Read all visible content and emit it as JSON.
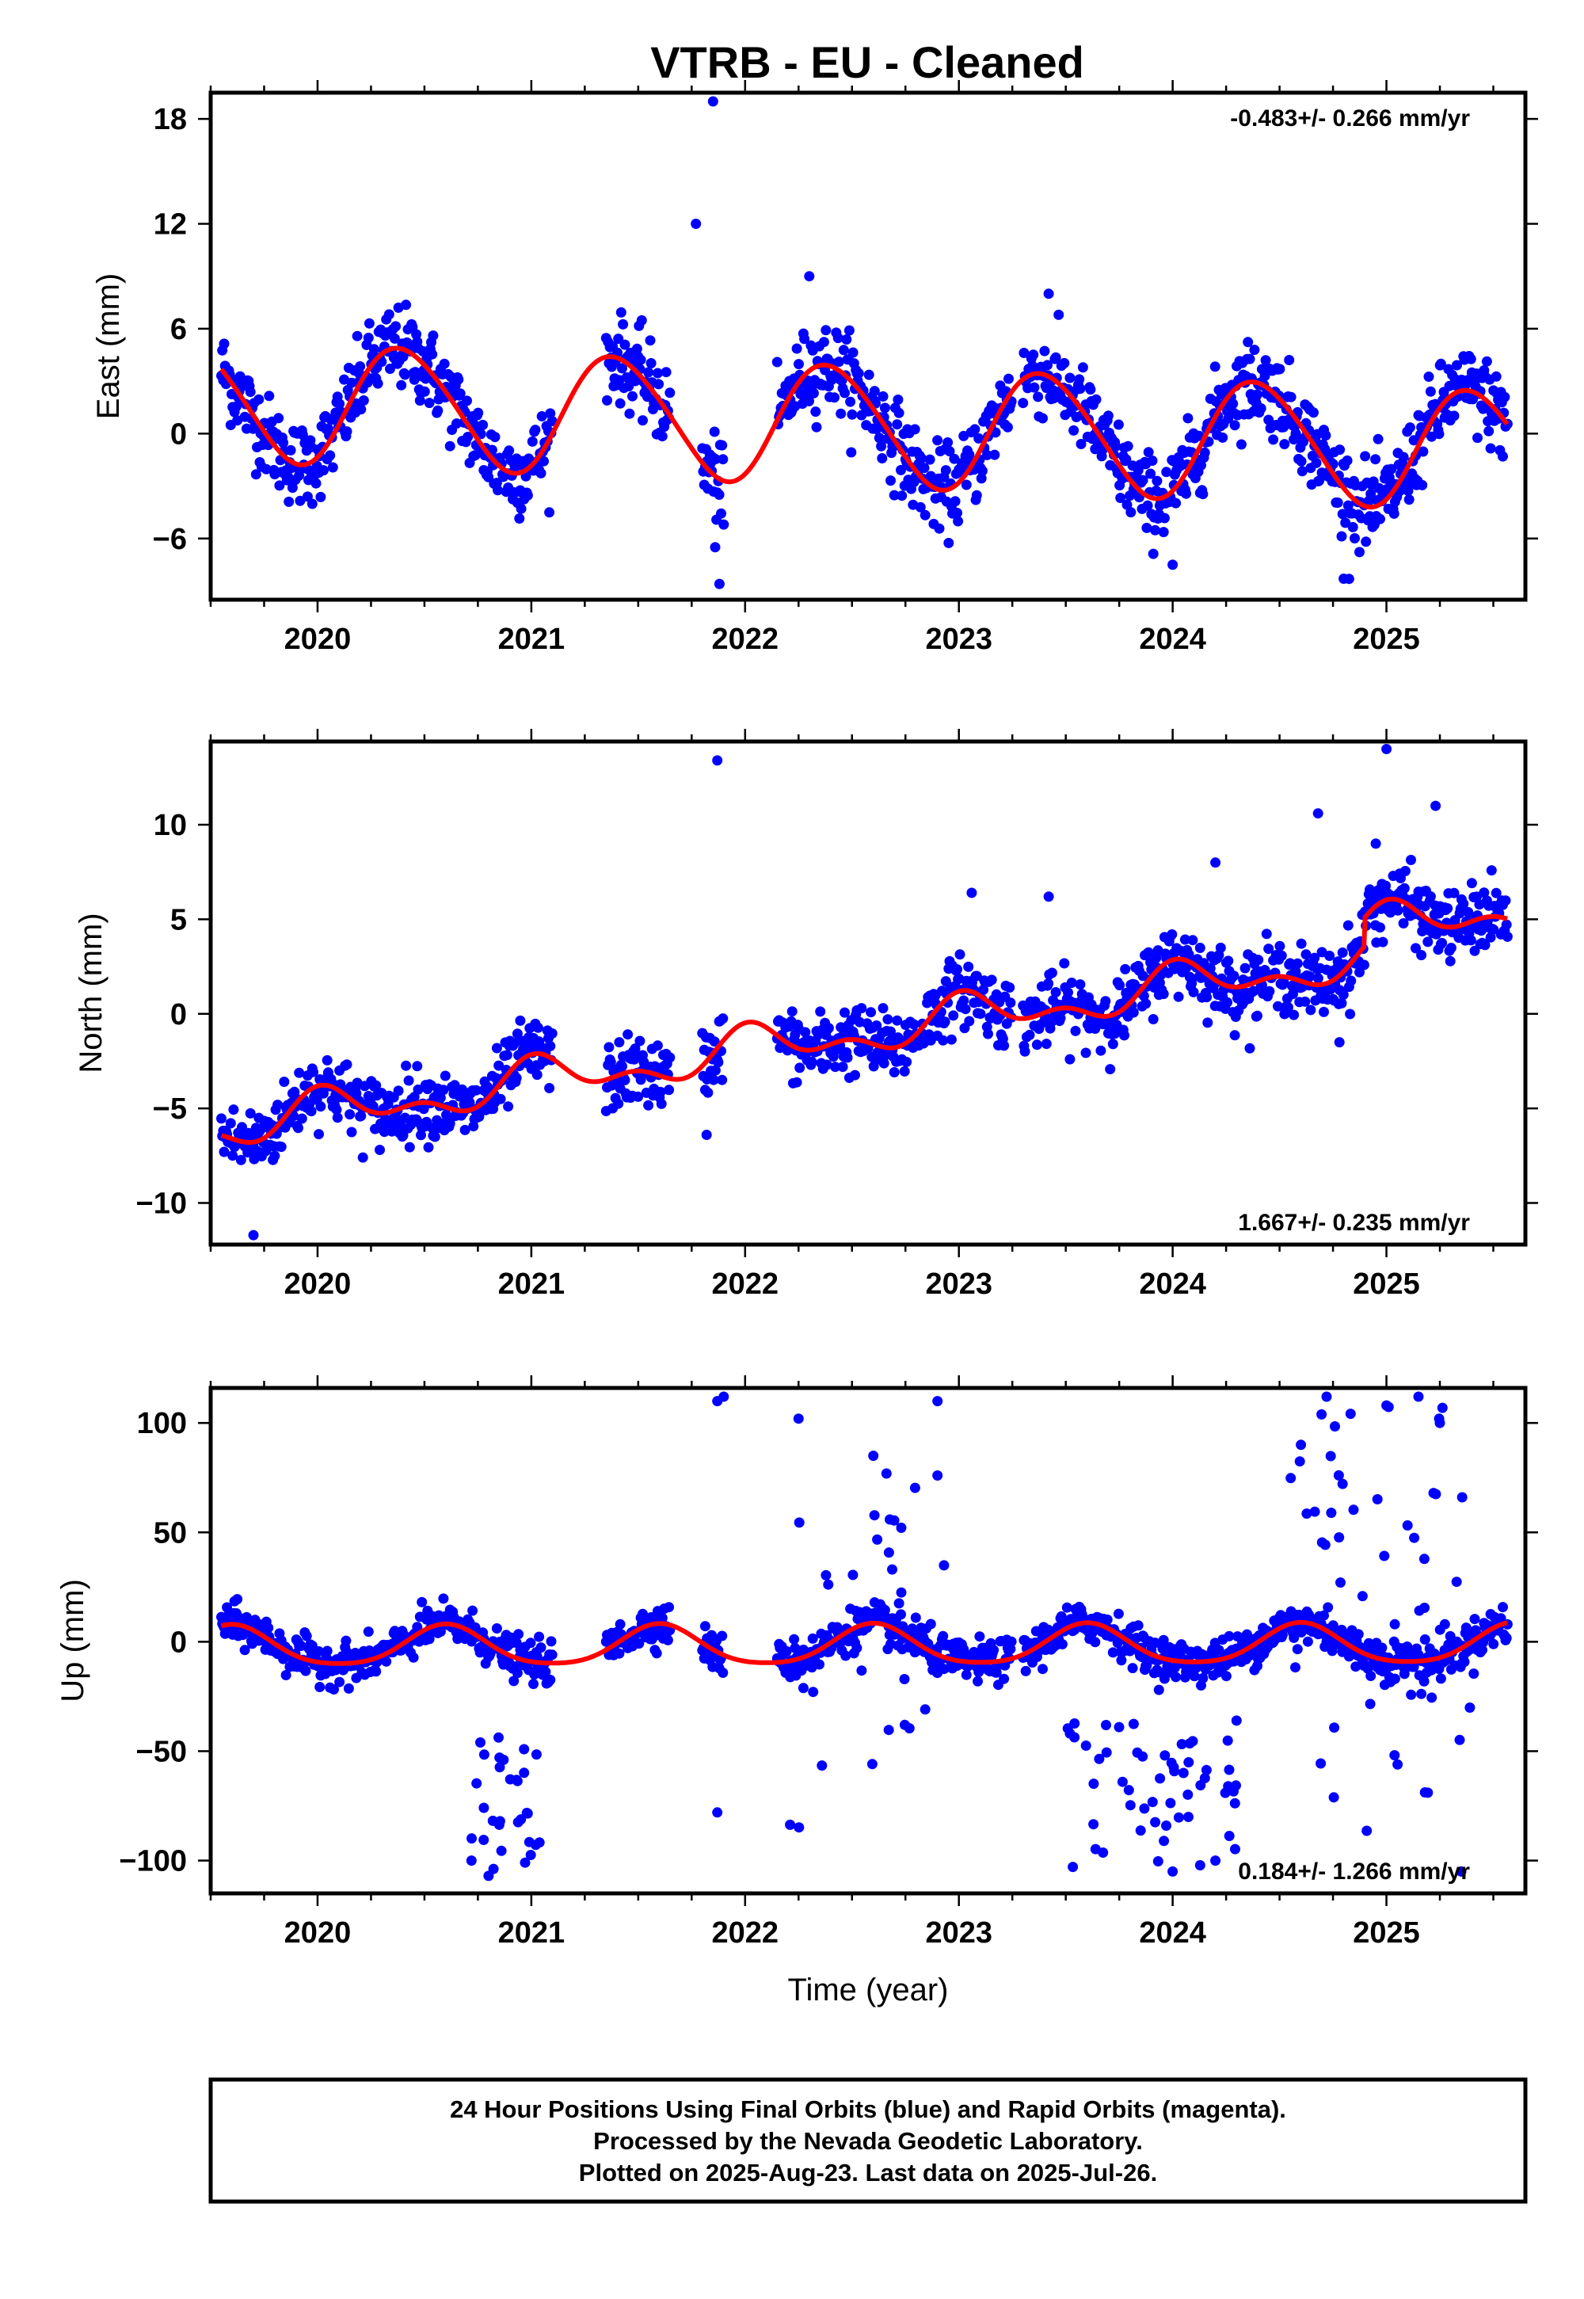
{
  "title": "VTRB  - EU - Cleaned",
  "footer": {
    "line1": "24 Hour Positions Using Final Orbits (blue) and Rapid Orbits (magenta).",
    "line2": "Processed by the Nevada Geodetic Laboratory.",
    "line3": "Plotted on 2025-Aug-23. Last data on 2025-Jul-26."
  },
  "colors": {
    "data_points": "#0000ff",
    "model_curve": "#ff0000",
    "axes": "#000000"
  },
  "chart_data": [
    {
      "type": "scatter",
      "ylabel": "East (mm)",
      "ylim": [
        -9.5,
        19.5
      ],
      "yticks": [
        -6,
        0,
        6,
        12,
        18
      ],
      "ytick_labels": [
        "−6",
        "0",
        "6",
        "12",
        "18"
      ],
      "xlim": [
        2019.5,
        2025.65
      ],
      "xticks": [
        2020,
        2021,
        2022,
        2023,
        2024,
        2025
      ],
      "xtick_labels": [
        "2020",
        "2021",
        "2022",
        "2023",
        "2024",
        "2025"
      ],
      "rate_label": "-0.483+/- 0.266 mm/yr",
      "rate_position": "top-right",
      "model": {
        "offset": 0.5,
        "rate": -0.483,
        "annual_amplitude": 3.4,
        "annual_peak": 0.4,
        "semiannual_amplitude": 0.3,
        "semiannual_peak": 0.25
      },
      "series": [
        {
          "style": "points",
          "segments": [
            [
              2019.55,
              2021.1
            ],
            [
              2021.35,
              2021.65
            ],
            [
              2021.8,
              2021.9
            ],
            [
              2022.15,
              2023.25
            ],
            [
              2023.3,
              2025.57
            ]
          ],
          "scatter_sd": 1.2,
          "outliers": [
            [
              2021.85,
              19.0
            ],
            [
              2021.77,
              12.0
            ],
            [
              2022.3,
              9.0
            ],
            [
              2023.42,
              8.0
            ],
            [
              2021.88,
              -8.6
            ],
            [
              2021.86,
              -6.5
            ],
            [
              2021.9,
              -5.2
            ],
            [
              2024.8,
              -8.3
            ],
            [
              2024.0,
              -7.5
            ]
          ]
        },
        {
          "style": "line",
          "from": 2019.55,
          "to": 2025.57
        }
      ]
    },
    {
      "type": "scatter",
      "ylabel": "North (mm)",
      "ylim": [
        -12.2,
        14.4
      ],
      "yticks": [
        -10,
        -5,
        0,
        5,
        10
      ],
      "ytick_labels": [
        "−10",
        "−5",
        "0",
        "5",
        "10"
      ],
      "xlim": [
        2019.5,
        2025.65
      ],
      "xticks": [
        2020,
        2021,
        2022,
        2023,
        2024,
        2025
      ],
      "xtick_labels": [
        "2020",
        "2021",
        "2022",
        "2023",
        "2024",
        "2025"
      ],
      "rate_label": "1.667+/- 0.235 mm/yr",
      "rate_position": "bottom-right",
      "model": {
        "offset": -1.1,
        "rate": 1.667,
        "annual_amplitude": 0.9,
        "annual_peak": 0.05,
        "semiannual_amplitude": 0.6,
        "semiannual_peak": 0.5,
        "break_year": 2024.9,
        "break_offset": 1.5
      },
      "series": [
        {
          "style": "points",
          "segments": [
            [
              2019.55,
              2021.1
            ],
            [
              2021.35,
              2021.65
            ],
            [
              2021.8,
              2021.9
            ],
            [
              2022.15,
              2023.25
            ],
            [
              2023.3,
              2025.57
            ]
          ],
          "scatter_sd": 0.9,
          "outliers": [
            [
              2021.87,
              13.4
            ],
            [
              2025.0,
              14.0
            ],
            [
              2025.23,
              11.0
            ],
            [
              2024.68,
              10.6
            ],
            [
              2024.95,
              9.0
            ],
            [
              2023.06,
              6.4
            ],
            [
              2023.42,
              6.2
            ],
            [
              2024.2,
              8.0
            ],
            [
              2019.7,
              -11.7
            ],
            [
              2021.82,
              -6.4
            ],
            [
              2024.78,
              -1.5
            ]
          ]
        },
        {
          "style": "line",
          "from": 2019.55,
          "to": 2025.57
        }
      ]
    },
    {
      "type": "scatter",
      "ylabel": "Up (mm)",
      "xlabel": "Time (year)",
      "ylim": [
        -115,
        116
      ],
      "yticks": [
        -100,
        -50,
        0,
        50,
        100
      ],
      "ytick_labels": [
        "−100",
        "−50",
        "0",
        "50",
        "100"
      ],
      "xlim": [
        2019.5,
        2025.65
      ],
      "xticks": [
        2020,
        2021,
        2022,
        2023,
        2024,
        2025
      ],
      "xtick_labels": [
        "2020",
        "2021",
        "2022",
        "2023",
        "2024",
        "2025"
      ],
      "rate_label": "0.184+/- 1.266 mm/yr",
      "rate_position": "bottom-right",
      "model": {
        "offset": -2.0,
        "rate": 0.184,
        "annual_amplitude": 9.0,
        "annual_peak": 0.6,
        "semiannual_amplitude": 1.5,
        "semiannual_peak": 0.1
      },
      "series": [
        {
          "style": "points",
          "segments": [
            [
              2019.55,
              2021.1
            ],
            [
              2021.35,
              2021.65
            ],
            [
              2021.8,
              2021.9
            ],
            [
              2022.15,
              2023.25
            ],
            [
              2023.3,
              2025.57
            ]
          ],
          "scatter_sd": 4.5,
          "outliers": [
            [
              2021.87,
              110
            ],
            [
              2021.9,
              112
            ],
            [
              2022.25,
              102
            ],
            [
              2022.9,
              110
            ],
            [
              2024.72,
              112
            ],
            [
              2025.15,
              112
            ],
            [
              2025.0,
              108
            ],
            [
              2020.72,
              -100
            ],
            [
              2020.8,
              -107
            ],
            [
              2024.0,
              -105
            ],
            [
              2024.2,
              -100
            ],
            [
              2025.35,
              -105
            ],
            [
              2022.6,
              85
            ],
            [
              2024.6,
              90
            ],
            [
              2025.25,
              100
            ],
            [
              2021.87,
              -78
            ],
            [
              2022.9,
              76
            ]
          ],
          "scattered_clusters": [
            [
              2020.7,
              2021.05,
              -105,
              -40,
              30
            ],
            [
              2022.5,
              2022.95,
              -60,
              85,
              28
            ],
            [
              2023.5,
              2024.3,
              -105,
              -35,
              55
            ],
            [
              2024.55,
              2025.4,
              -90,
              110,
              55
            ],
            [
              2022.2,
              2022.4,
              -95,
              60,
              8
            ]
          ]
        },
        {
          "style": "line",
          "from": 2019.55,
          "to": 2025.57
        }
      ]
    }
  ]
}
